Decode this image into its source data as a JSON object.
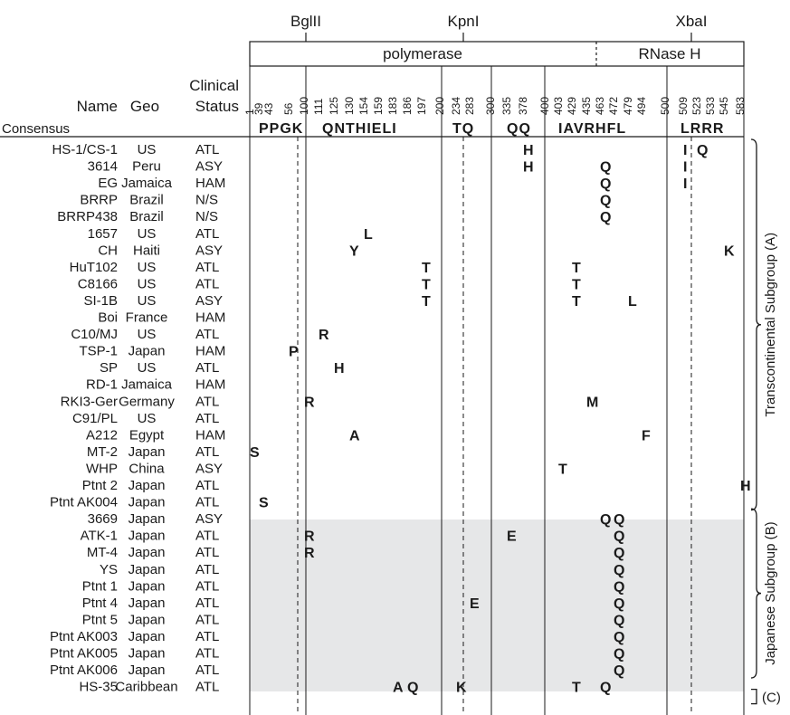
{
  "restriction_sites": [
    "BglII",
    "KpnI",
    "XbaI"
  ],
  "domains": [
    "polymerase",
    "RNase H"
  ],
  "headers": {
    "name": "Name",
    "geo": "Geo",
    "clinical_line1": "Clinical",
    "clinical_line2": "Status"
  },
  "consensus_label": "Consensus",
  "positions": [
    "1",
    "39",
    "43",
    "56",
    "100",
    "111",
    "125",
    "130",
    "154",
    "159",
    "183",
    "186",
    "197",
    "200",
    "234",
    "283",
    "300",
    "335",
    "378",
    "400",
    "403",
    "429",
    "435",
    "463",
    "472",
    "479",
    "494",
    "500",
    "509",
    "523",
    "533",
    "545",
    "583"
  ],
  "consensus_segments": [
    "PPGK",
    "QNTHIELI",
    "TQ",
    "QQ",
    "IAVRHFL",
    "LRRR"
  ],
  "rows": [
    {
      "name": "HS-1/CS-1",
      "geo": "US",
      "status": "ATL",
      "muts": [
        [
          "378",
          "H"
        ],
        [
          "509",
          "I"
        ],
        [
          "523",
          "Q"
        ]
      ]
    },
    {
      "name": "3614",
      "geo": "Peru",
      "status": "ASY",
      "muts": [
        [
          "378",
          "H"
        ],
        [
          "463",
          "Q"
        ],
        [
          "509",
          "I"
        ]
      ]
    },
    {
      "name": "EG",
      "geo": "Jamaica",
      "status": "HAM",
      "muts": [
        [
          "463",
          "Q"
        ],
        [
          "509",
          "I"
        ]
      ]
    },
    {
      "name": "BRRP",
      "geo": "Brazil",
      "status": "N/S",
      "muts": [
        [
          "463",
          "Q"
        ]
      ]
    },
    {
      "name": "BRRP438",
      "geo": "Brazil",
      "status": "N/S",
      "muts": [
        [
          "463",
          "Q"
        ]
      ]
    },
    {
      "name": "1657",
      "geo": "US",
      "status": "ATL",
      "muts": [
        [
          "154",
          "L"
        ]
      ]
    },
    {
      "name": "CH",
      "geo": "Haiti",
      "status": "ASY",
      "muts": [
        [
          "130",
          "Y"
        ],
        [
          "545",
          "K"
        ]
      ]
    },
    {
      "name": "HuT102",
      "geo": "US",
      "status": "ATL",
      "muts": [
        [
          "197",
          "T"
        ],
        [
          "429",
          "T"
        ]
      ]
    },
    {
      "name": "C8166",
      "geo": "US",
      "status": "ATL",
      "muts": [
        [
          "197",
          "T"
        ],
        [
          "429",
          "T"
        ]
      ]
    },
    {
      "name": "SI-1B",
      "geo": "US",
      "status": "ASY",
      "muts": [
        [
          "197",
          "T"
        ],
        [
          "429",
          "T"
        ],
        [
          "479",
          "L"
        ]
      ]
    },
    {
      "name": "Boi",
      "geo": "France",
      "status": "HAM",
      "muts": []
    },
    {
      "name": "C10/MJ",
      "geo": "US",
      "status": "ATL",
      "muts": [
        [
          "111",
          "R"
        ]
      ]
    },
    {
      "name": "TSP-1",
      "geo": "Japan",
      "status": "HAM",
      "muts": [
        [
          "56",
          "P"
        ]
      ]
    },
    {
      "name": "SP",
      "geo": "US",
      "status": "ATL",
      "muts": [
        [
          "125",
          "H"
        ]
      ]
    },
    {
      "name": "RD-1",
      "geo": "Jamaica",
      "status": "HAM",
      "muts": []
    },
    {
      "name": "RKI3-Ger",
      "geo": "Germany",
      "status": "ATL",
      "muts": [
        [
          "100",
          "R"
        ],
        [
          "435",
          "M"
        ]
      ]
    },
    {
      "name": "C91/PL",
      "geo": "US",
      "status": "ATL",
      "muts": []
    },
    {
      "name": "A212",
      "geo": "Egypt",
      "status": "HAM",
      "muts": [
        [
          "130",
          "A"
        ],
        [
          "494",
          "F"
        ]
      ]
    },
    {
      "name": "MT-2",
      "geo": "Japan",
      "status": "ATL",
      "muts": [
        [
          "1",
          "S"
        ]
      ]
    },
    {
      "name": "WHP",
      "geo": "China",
      "status": "ASY",
      "muts": [
        [
          "403",
          "T"
        ]
      ]
    },
    {
      "name": "Ptnt 2",
      "geo": "Japan",
      "status": "ATL",
      "muts": [
        [
          "583",
          "H"
        ]
      ]
    },
    {
      "name": "Ptnt AK004",
      "geo": "Japan",
      "status": "ATL",
      "muts": [
        [
          "39",
          "S"
        ]
      ]
    },
    {
      "name": "3669",
      "geo": "Japan",
      "status": "ASY",
      "muts": [
        [
          "463",
          "Q"
        ],
        [
          "472",
          "Q"
        ]
      ]
    },
    {
      "name": "ATK-1",
      "geo": "Japan",
      "status": "ATL",
      "muts": [
        [
          "100",
          "R"
        ],
        [
          "335",
          "E"
        ],
        [
          "472",
          "Q"
        ]
      ]
    },
    {
      "name": "MT-4",
      "geo": "Japan",
      "status": "ATL",
      "muts": [
        [
          "100",
          "R"
        ],
        [
          "472",
          "Q"
        ]
      ]
    },
    {
      "name": "YS",
      "geo": "Japan",
      "status": "ATL",
      "muts": [
        [
          "472",
          "Q"
        ]
      ]
    },
    {
      "name": "Ptnt 1",
      "geo": "Japan",
      "status": "ATL",
      "muts": [
        [
          "472",
          "Q"
        ]
      ]
    },
    {
      "name": "Ptnt 4",
      "geo": "Japan",
      "status": "ATL",
      "muts": [
        [
          "283",
          "E"
        ],
        [
          "472",
          "Q"
        ]
      ]
    },
    {
      "name": "Ptnt 5",
      "geo": "Japan",
      "status": "ATL",
      "muts": [
        [
          "472",
          "Q"
        ]
      ]
    },
    {
      "name": "Ptnt AK003",
      "geo": "Japan",
      "status": "ATL",
      "muts": [
        [
          "472",
          "Q"
        ]
      ]
    },
    {
      "name": "Ptnt AK005",
      "geo": "Japan",
      "status": "ATL",
      "muts": [
        [
          "472",
          "Q"
        ]
      ]
    },
    {
      "name": "Ptnt AK006",
      "geo": "Japan",
      "status": "ATL",
      "muts": [
        [
          "472",
          "Q"
        ]
      ]
    },
    {
      "name": "HS-35",
      "geo": "Caribbean",
      "status": "ATL",
      "muts": [
        [
          "183",
          "A"
        ],
        [
          "186",
          "Q"
        ],
        [
          "234",
          "K"
        ],
        [
          "429",
          "T"
        ],
        [
          "463",
          "Q"
        ]
      ]
    }
  ],
  "groups": [
    {
      "label": "Transcontinental Subgroup (A)",
      "from": 0,
      "to": 21
    },
    {
      "label": "Japanese Subgroup (B)",
      "from": 22,
      "to": 31
    },
    {
      "label": "(C)",
      "from": 32,
      "to": 32
    }
  ],
  "colors": {
    "shade": "#e6e7e8",
    "ink": "#1a1a1a"
  }
}
